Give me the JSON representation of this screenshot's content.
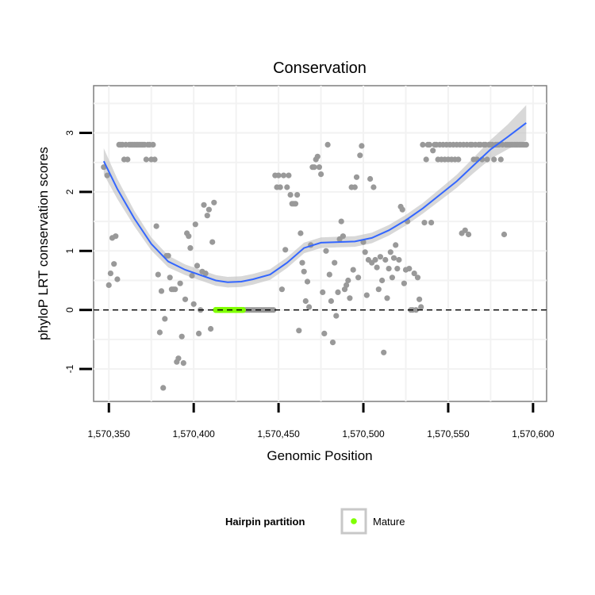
{
  "chart_data": {
    "type": "scatter",
    "title": "Conservation",
    "xlabel": "Genomic Position",
    "ylabel": "phyloP LRT conservation scores",
    "xlim": [
      1570341,
      1570608
    ],
    "ylim": [
      -1.55,
      3.8
    ],
    "x_ticks": [
      1570350,
      1570400,
      1570450,
      1570500,
      1570550,
      1570600
    ],
    "x_tick_labels": [
      "1,570,350",
      "1,570,400",
      "1,570,450",
      "1,570,500",
      "1,570,550",
      "1,570,600"
    ],
    "y_ticks": [
      -1,
      0,
      1,
      2,
      3
    ],
    "y_tick_labels": [
      "-1",
      "0",
      "1",
      "2",
      "3"
    ],
    "reference_line_y": 0,
    "grid": true,
    "legend_position": "bottom",
    "legend": {
      "title": "Hairpin partition",
      "items": [
        {
          "label": "Mature",
          "color": "#7fff00"
        }
      ]
    },
    "colors": {
      "points": "#999999",
      "mature": "#7fff00",
      "smooth_line": "#3366ff",
      "ribbon": "#bebebe"
    },
    "series": [
      {
        "name": "scores",
        "type": "scatter",
        "points": [
          [
            1570347,
            2.42
          ],
          [
            1570349,
            2.28
          ],
          [
            1570350,
            0.42
          ],
          [
            1570351,
            0.62
          ],
          [
            1570352,
            1.22
          ],
          [
            1570353,
            0.78
          ],
          [
            1570354,
            1.25
          ],
          [
            1570355,
            0.52
          ],
          [
            1570356,
            2.8
          ],
          [
            1570357,
            2.8
          ],
          [
            1570358,
            2.8
          ],
          [
            1570359,
            2.55
          ],
          [
            1570360,
            2.8
          ],
          [
            1570361,
            2.55
          ],
          [
            1570362,
            2.8
          ],
          [
            1570363,
            2.8
          ],
          [
            1570364,
            2.8
          ],
          [
            1570365,
            2.8
          ],
          [
            1570366,
            2.8
          ],
          [
            1570367,
            2.8
          ],
          [
            1570368,
            2.8
          ],
          [
            1570369,
            2.8
          ],
          [
            1570370,
            2.8
          ],
          [
            1570371,
            2.8
          ],
          [
            1570372,
            2.55
          ],
          [
            1570373,
            2.8
          ],
          [
            1570374,
            2.8
          ],
          [
            1570375,
            2.55
          ],
          [
            1570376,
            2.8
          ],
          [
            1570377,
            2.55
          ],
          [
            1570378,
            1.42
          ],
          [
            1570379,
            0.6
          ],
          [
            1570380,
            -0.38
          ],
          [
            1570381,
            0.32
          ],
          [
            1570382,
            -1.32
          ],
          [
            1570383,
            -0.15
          ],
          [
            1570384,
            0.92
          ],
          [
            1570385,
            0.92
          ],
          [
            1570386,
            0.55
          ],
          [
            1570387,
            0.35
          ],
          [
            1570388,
            0.35
          ],
          [
            1570389,
            0.35
          ],
          [
            1570390,
            -0.88
          ],
          [
            1570391,
            -0.82
          ],
          [
            1570392,
            0.45
          ],
          [
            1570393,
            -0.45
          ],
          [
            1570394,
            -0.9
          ],
          [
            1570395,
            0.18
          ],
          [
            1570396,
            1.3
          ],
          [
            1570397,
            1.25
          ],
          [
            1570398,
            1.05
          ],
          [
            1570399,
            0.58
          ],
          [
            1570400,
            0.1
          ],
          [
            1570401,
            1.45
          ],
          [
            1570402,
            0.75
          ],
          [
            1570403,
            -0.4
          ],
          [
            1570404,
            0.0
          ],
          [
            1570405,
            0.65
          ],
          [
            1570406,
            1.78
          ],
          [
            1570407,
            0.62
          ],
          [
            1570408,
            1.6
          ],
          [
            1570409,
            1.7
          ],
          [
            1570410,
            -0.32
          ],
          [
            1570411,
            1.15
          ],
          [
            1570412,
            1.82
          ],
          [
            1570430,
            0
          ],
          [
            1570431,
            0
          ],
          [
            1570432,
            0
          ],
          [
            1570433,
            0
          ],
          [
            1570434,
            0
          ],
          [
            1570435,
            0
          ],
          [
            1570436,
            0
          ],
          [
            1570437,
            0
          ],
          [
            1570438,
            0
          ],
          [
            1570439,
            0
          ],
          [
            1570440,
            0
          ],
          [
            1570441,
            0
          ],
          [
            1570442,
            0
          ],
          [
            1570443,
            0
          ],
          [
            1570444,
            0
          ],
          [
            1570445,
            0
          ],
          [
            1570446,
            0
          ],
          [
            1570447,
            0
          ],
          [
            1570448,
            2.28
          ],
          [
            1570449,
            2.08
          ],
          [
            1570450,
            2.28
          ],
          [
            1570451,
            2.08
          ],
          [
            1570452,
            0.35
          ],
          [
            1570453,
            2.28
          ],
          [
            1570454,
            1.02
          ],
          [
            1570455,
            2.08
          ],
          [
            1570456,
            2.28
          ],
          [
            1570457,
            1.95
          ],
          [
            1570458,
            1.8
          ],
          [
            1570459,
            1.8
          ],
          [
            1570460,
            1.8
          ],
          [
            1570461,
            1.95
          ],
          [
            1570462,
            -0.35
          ],
          [
            1570463,
            1.3
          ],
          [
            1570464,
            0.8
          ],
          [
            1570465,
            0.65
          ],
          [
            1570466,
            0.15
          ],
          [
            1570467,
            0.48
          ],
          [
            1570468,
            0.05
          ],
          [
            1570469,
            1.1
          ],
          [
            1570470,
            2.42
          ],
          [
            1570471,
            2.42
          ],
          [
            1570472,
            2.55
          ],
          [
            1570473,
            2.6
          ],
          [
            1570474,
            2.42
          ],
          [
            1570475,
            2.3
          ],
          [
            1570476,
            0.3
          ],
          [
            1570477,
            -0.4
          ],
          [
            1570478,
            1.0
          ],
          [
            1570479,
            2.8
          ],
          [
            1570480,
            0.6
          ],
          [
            1570481,
            0.15
          ],
          [
            1570482,
            -0.55
          ],
          [
            1570483,
            0.8
          ],
          [
            1570484,
            -0.1
          ],
          [
            1570485,
            0.3
          ],
          [
            1570486,
            1.2
          ],
          [
            1570487,
            1.5
          ],
          [
            1570488,
            1.25
          ],
          [
            1570489,
            0.35
          ],
          [
            1570490,
            0.42
          ],
          [
            1570491,
            0.5
          ],
          [
            1570492,
            0.2
          ],
          [
            1570493,
            2.08
          ],
          [
            1570494,
            0.68
          ],
          [
            1570495,
            2.08
          ],
          [
            1570496,
            2.25
          ],
          [
            1570497,
            0.55
          ],
          [
            1570498,
            2.62
          ],
          [
            1570499,
            2.78
          ],
          [
            1570500,
            1.15
          ],
          [
            1570501,
            0.98
          ],
          [
            1570502,
            0.25
          ],
          [
            1570503,
            0.85
          ],
          [
            1570504,
            2.22
          ],
          [
            1570505,
            0.8
          ],
          [
            1570506,
            2.08
          ],
          [
            1570507,
            0.85
          ],
          [
            1570508,
            0.72
          ],
          [
            1570509,
            0.35
          ],
          [
            1570510,
            0.9
          ],
          [
            1570511,
            0.5
          ],
          [
            1570512,
            -0.72
          ],
          [
            1570513,
            0.85
          ],
          [
            1570514,
            0.2
          ],
          [
            1570515,
            0.7
          ],
          [
            1570516,
            0.98
          ],
          [
            1570517,
            0.55
          ],
          [
            1570518,
            0.88
          ],
          [
            1570519,
            1.1
          ],
          [
            1570520,
            0.7
          ],
          [
            1570521,
            0.85
          ],
          [
            1570522,
            1.75
          ],
          [
            1570523,
            1.7
          ],
          [
            1570524,
            0.45
          ],
          [
            1570525,
            0.68
          ],
          [
            1570526,
            1.5
          ],
          [
            1570527,
            0.7
          ],
          [
            1570528,
            0.0
          ],
          [
            1570529,
            0.0
          ],
          [
            1570530,
            0.62
          ],
          [
            1570531,
            0.0
          ],
          [
            1570532,
            0.55
          ],
          [
            1570533,
            0.18
          ],
          [
            1570534,
            0.05
          ],
          [
            1570535,
            2.8
          ],
          [
            1570536,
            1.48
          ],
          [
            1570537,
            2.55
          ],
          [
            1570538,
            2.8
          ],
          [
            1570539,
            2.8
          ],
          [
            1570540,
            1.48
          ],
          [
            1570541,
            2.7
          ],
          [
            1570542,
            2.8
          ],
          [
            1570543,
            2.8
          ],
          [
            1570544,
            2.55
          ],
          [
            1570545,
            2.8
          ],
          [
            1570546,
            2.55
          ],
          [
            1570547,
            2.8
          ],
          [
            1570548,
            2.55
          ],
          [
            1570549,
            2.8
          ],
          [
            1570550,
            2.55
          ],
          [
            1570551,
            2.8
          ],
          [
            1570552,
            2.55
          ],
          [
            1570553,
            2.8
          ],
          [
            1570554,
            2.55
          ],
          [
            1570555,
            2.8
          ],
          [
            1570556,
            2.55
          ],
          [
            1570557,
            2.8
          ],
          [
            1570558,
            1.3
          ],
          [
            1570559,
            2.8
          ],
          [
            1570560,
            1.35
          ],
          [
            1570561,
            2.8
          ],
          [
            1570562,
            1.28
          ],
          [
            1570563,
            2.8
          ],
          [
            1570564,
            2.8
          ],
          [
            1570565,
            2.55
          ],
          [
            1570566,
            2.8
          ],
          [
            1570567,
            2.55
          ],
          [
            1570568,
            2.8
          ],
          [
            1570569,
            2.8
          ],
          [
            1570570,
            2.55
          ],
          [
            1570571,
            2.8
          ],
          [
            1570572,
            2.8
          ],
          [
            1570573,
            2.55
          ],
          [
            1570574,
            2.8
          ],
          [
            1570575,
            2.8
          ],
          [
            1570576,
            2.8
          ],
          [
            1570577,
            2.55
          ],
          [
            1570578,
            2.8
          ],
          [
            1570579,
            2.8
          ],
          [
            1570580,
            2.8
          ],
          [
            1570581,
            2.55
          ],
          [
            1570582,
            2.8
          ],
          [
            1570583,
            1.28
          ],
          [
            1570584,
            2.8
          ],
          [
            1570585,
            2.8
          ],
          [
            1570586,
            2.8
          ],
          [
            1570587,
            2.8
          ],
          [
            1570588,
            2.8
          ],
          [
            1570589,
            2.8
          ],
          [
            1570590,
            2.8
          ],
          [
            1570591,
            2.8
          ],
          [
            1570592,
            2.8
          ],
          [
            1570593,
            2.8
          ],
          [
            1570594,
            2.8
          ],
          [
            1570595,
            2.8
          ],
          [
            1570596,
            2.8
          ]
        ]
      },
      {
        "name": "Mature",
        "type": "scatter",
        "points": [
          [
            1570413,
            0
          ],
          [
            1570414,
            0
          ],
          [
            1570415,
            0
          ],
          [
            1570416,
            0
          ],
          [
            1570417,
            0
          ],
          [
            1570418,
            0
          ],
          [
            1570419,
            0
          ],
          [
            1570420,
            0
          ],
          [
            1570421,
            0
          ],
          [
            1570422,
            0
          ],
          [
            1570423,
            0
          ],
          [
            1570424,
            0
          ],
          [
            1570425,
            0
          ],
          [
            1570426,
            0
          ],
          [
            1570427,
            0
          ],
          [
            1570428,
            0
          ],
          [
            1570429,
            0
          ]
        ]
      },
      {
        "name": "smooth",
        "type": "line",
        "points": [
          [
            1570347,
            2.52
          ],
          [
            1570355,
            2.05
          ],
          [
            1570365,
            1.55
          ],
          [
            1570375,
            1.12
          ],
          [
            1570385,
            0.82
          ],
          [
            1570395,
            0.68
          ],
          [
            1570405,
            0.58
          ],
          [
            1570413,
            0.5
          ],
          [
            1570420,
            0.47
          ],
          [
            1570428,
            0.48
          ],
          [
            1570435,
            0.52
          ],
          [
            1570445,
            0.6
          ],
          [
            1570455,
            0.8
          ],
          [
            1570465,
            1.05
          ],
          [
            1570475,
            1.14
          ],
          [
            1570485,
            1.15
          ],
          [
            1570495,
            1.16
          ],
          [
            1570505,
            1.22
          ],
          [
            1570515,
            1.35
          ],
          [
            1570525,
            1.52
          ],
          [
            1570535,
            1.72
          ],
          [
            1570545,
            1.95
          ],
          [
            1570555,
            2.18
          ],
          [
            1570565,
            2.45
          ],
          [
            1570575,
            2.72
          ],
          [
            1570585,
            2.93
          ],
          [
            1570596,
            3.17
          ]
        ],
        "ribbon_halfwidth": [
          0.22,
          0.17,
          0.13,
          0.11,
          0.1,
          0.09,
          0.09,
          0.09,
          0.09,
          0.09,
          0.09,
          0.09,
          0.09,
          0.09,
          0.09,
          0.09,
          0.09,
          0.09,
          0.09,
          0.09,
          0.09,
          0.1,
          0.11,
          0.13,
          0.16,
          0.21,
          0.3
        ]
      }
    ]
  }
}
